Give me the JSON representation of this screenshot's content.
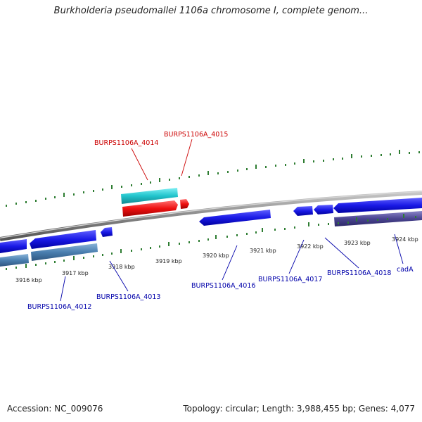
{
  "title": "Burkholderia pseudomallei 1106a chromosome I, complete genom...",
  "accession": "Accession: NC_009076",
  "summary": "Topology: circular; Length: 3,988,455 bp; Genes: 4,077",
  "colors": {
    "backbone": "#888888",
    "tick": "#2e7d32",
    "gene_blue": "#1a1ae6",
    "gene_red": "#ee1111",
    "gene_cyan": "#22c4cc",
    "gene_steel": "#4a7fb0",
    "gene_slate": "#4a4490",
    "label_blue": "#0000aa",
    "label_red": "#cc0000"
  },
  "ticks": [
    "3916 kbp",
    "3917 kbp",
    "3918 kbp",
    "3919 kbp",
    "3920 kbp",
    "3921 kbp",
    "3922 kbp",
    "3923 kbp",
    "3924 kbp"
  ],
  "labels": {
    "l4012": "BURPS1106A_4012",
    "l4013": "BURPS1106A_4013",
    "l4014": "BURPS1106A_4014",
    "l4015": "BURPS1106A_4015",
    "l4016": "BURPS1106A_4016",
    "l4017": "BURPS1106A_4017",
    "l4018": "BURPS1106A_4018",
    "cadA": "cadA"
  }
}
